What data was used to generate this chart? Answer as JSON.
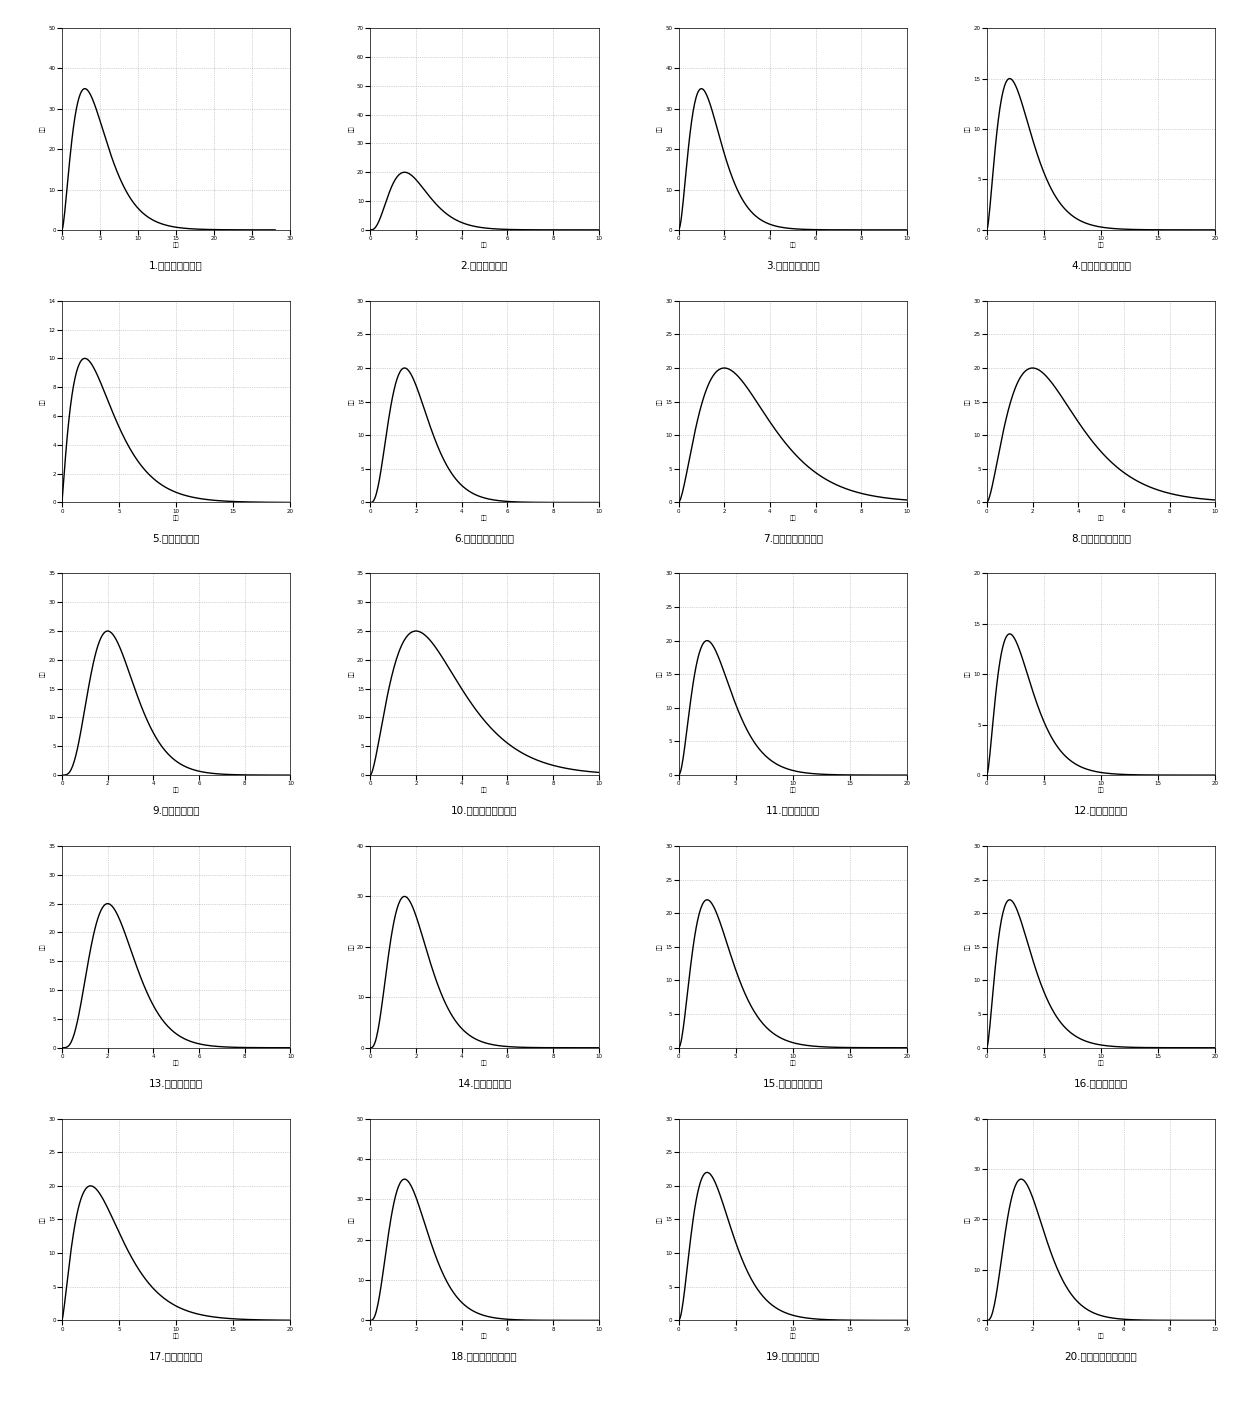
{
  "labels": [
    "1.盘古山镇长龙村",
    "2.靖石乡杨梅村",
    "3.铁山垄镇丰田村",
    "4.葛坳乡牛颈村坝上",
    "5.宽田乡宽田村",
    "6.贡江镇新地村蛇脑",
    "7.贡江镇上欧村庙角",
    "8.贡江镇上欧村阳公",
    "9.禾丰镇禾丰村",
    "10.梓山镇岗脑村坝内",
    "11.银坑镇松山村",
    "12.马安乡大螺村",
    "13.银坑镇汉田村",
    "14.仙下乡吉村村",
    "15.岭背镇小禾溪村",
    "16.贡江镇东溪村",
    "17.罗坳镇步前村",
    "18.禾丰镇黄堳村坝上",
    "19.罗江乡笔竹村",
    "20.新陂乡光明村罗大丘"
  ],
  "plots": [
    {
      "peak_t": 3.0,
      "peak_q": 35,
      "xmax": 28,
      "ymax": 50,
      "xstep": 5,
      "ystep": 10,
      "shape": "wide"
    },
    {
      "peak_t": 1.5,
      "peak_q": 20,
      "xmax": 10,
      "ymax": 70,
      "xstep": 2,
      "ystep": 10,
      "shape": "narrow"
    },
    {
      "peak_t": 1.0,
      "peak_q": 35,
      "xmax": 10,
      "ymax": 50,
      "xstep": 2,
      "ystep": 10,
      "shape": "narrow"
    },
    {
      "peak_t": 2.0,
      "peak_q": 15,
      "xmax": 20,
      "ymax": 20,
      "xstep": 5,
      "ystep": 5,
      "shape": "medium"
    },
    {
      "peak_t": 2.0,
      "peak_q": 10,
      "xmax": 20,
      "ymax": 14,
      "xstep": 5,
      "ystep": 2,
      "shape": "wide"
    },
    {
      "peak_t": 1.5,
      "peak_q": 20,
      "xmax": 10,
      "ymax": 28,
      "xstep": 2,
      "ystep": 5,
      "shape": "narrow"
    },
    {
      "peak_t": 2.0,
      "peak_q": 20,
      "xmax": 10,
      "ymax": 28,
      "xstep": 2,
      "ystep": 5,
      "shape": "medium"
    },
    {
      "peak_t": 2.0,
      "peak_q": 20,
      "xmax": 10,
      "ymax": 28,
      "xstep": 2,
      "ystep": 5,
      "shape": "medium"
    },
    {
      "peak_t": 2.0,
      "peak_q": 25,
      "xmax": 10,
      "ymax": 35,
      "xstep": 2,
      "ystep": 5,
      "shape": "narrow"
    },
    {
      "peak_t": 2.0,
      "peak_q": 25,
      "xmax": 10,
      "ymax": 35,
      "xstep": 2,
      "ystep": 5,
      "shape": "medium"
    },
    {
      "peak_t": 2.5,
      "peak_q": 20,
      "xmax": 20,
      "ymax": 28,
      "xstep": 5,
      "ystep": 5,
      "shape": "medium"
    },
    {
      "peak_t": 2.0,
      "peak_q": 14,
      "xmax": 20,
      "ymax": 20,
      "xstep": 5,
      "ystep": 5,
      "shape": "medium"
    },
    {
      "peak_t": 2.0,
      "peak_q": 25,
      "xmax": 10,
      "ymax": 35,
      "xstep": 2,
      "ystep": 5,
      "shape": "narrow"
    },
    {
      "peak_t": 1.5,
      "peak_q": 30,
      "xmax": 10,
      "ymax": 40,
      "xstep": 2,
      "ystep": 10,
      "shape": "narrow"
    },
    {
      "peak_t": 2.5,
      "peak_q": 22,
      "xmax": 20,
      "ymax": 30,
      "xstep": 5,
      "ystep": 5,
      "shape": "medium"
    },
    {
      "peak_t": 2.0,
      "peak_q": 22,
      "xmax": 20,
      "ymax": 30,
      "xstep": 5,
      "ystep": 5,
      "shape": "medium"
    },
    {
      "peak_t": 2.5,
      "peak_q": 20,
      "xmax": 20,
      "ymax": 28,
      "xstep": 5,
      "ystep": 5,
      "shape": "wide"
    },
    {
      "peak_t": 1.5,
      "peak_q": 35,
      "xmax": 10,
      "ymax": 50,
      "xstep": 2,
      "ystep": 10,
      "shape": "narrow"
    },
    {
      "peak_t": 2.5,
      "peak_q": 22,
      "xmax": 20,
      "ymax": 30,
      "xstep": 5,
      "ystep": 5,
      "shape": "medium"
    },
    {
      "peak_t": 1.5,
      "peak_q": 28,
      "xmax": 10,
      "ymax": 40,
      "xstep": 2,
      "ystep": 10,
      "shape": "narrow"
    }
  ],
  "xlabel": "时间",
  "ylabel": "流量",
  "grid_color": "#888888",
  "line_color": "#000000",
  "bg_color": "#ffffff"
}
